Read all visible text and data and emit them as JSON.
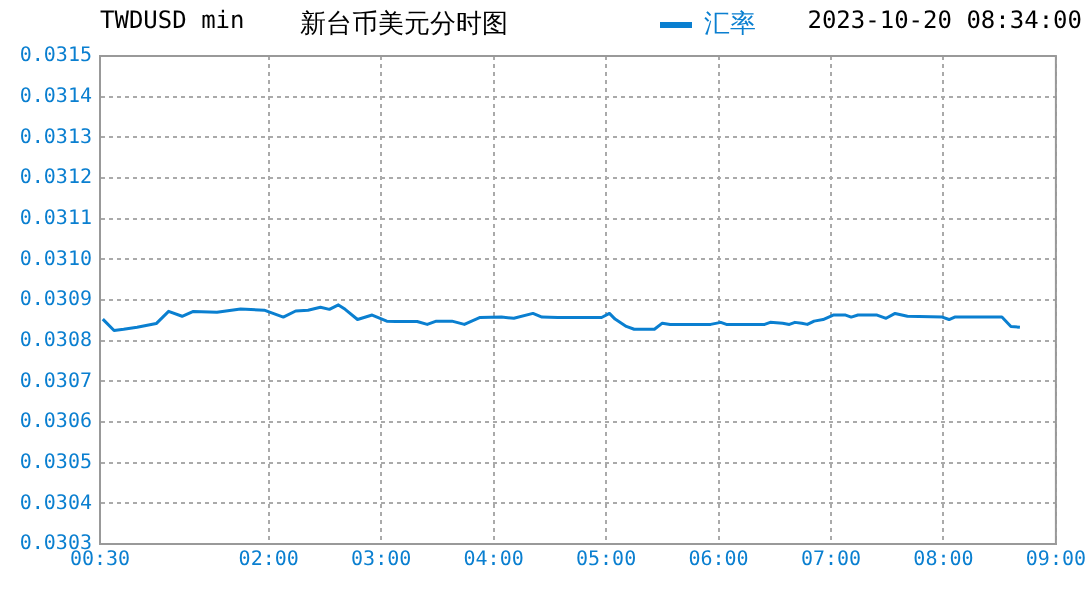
{
  "chart_data": {
    "type": "line",
    "title": "新台币美元分时图",
    "annotations": [
      "TWDUSD min",
      "2023-10-20 08:34:00"
    ],
    "x": [
      0.525,
      0.625,
      0.71,
      0.83,
      1.0,
      1.11,
      1.23,
      1.33,
      1.54,
      1.75,
      1.96,
      2.13,
      2.24,
      2.35,
      2.46,
      2.54,
      2.62,
      2.68,
      2.79,
      2.92,
      3.05,
      3.13,
      3.32,
      3.41,
      3.49,
      3.63,
      3.74,
      3.88,
      4.07,
      4.18,
      4.35,
      4.43,
      4.57,
      4.96,
      5.03,
      5.08,
      5.18,
      5.25,
      5.43,
      5.5,
      5.57,
      5.93,
      6.02,
      6.07,
      6.41,
      6.46,
      6.57,
      6.63,
      6.68,
      6.74,
      6.79,
      6.85,
      6.93,
      7.02,
      7.13,
      7.18,
      7.24,
      7.41,
      7.49,
      7.57,
      7.68,
      7.99,
      8.05,
      8.1,
      8.52,
      8.6,
      8.68
    ],
    "series": [
      {
        "name": "汇率",
        "color": "#0a7fd0",
        "values": [
          0.030853,
          0.030825,
          0.030828,
          0.030833,
          0.030842,
          0.030872,
          0.03086,
          0.030872,
          0.03087,
          0.030878,
          0.030875,
          0.030858,
          0.030873,
          0.030875,
          0.030882,
          0.030877,
          0.030888,
          0.030877,
          0.030852,
          0.030863,
          0.030848,
          0.030847,
          0.030847,
          0.03084,
          0.030848,
          0.030848,
          0.03084,
          0.030857,
          0.030858,
          0.030855,
          0.030867,
          0.030858,
          0.030857,
          0.030857,
          0.030867,
          0.030853,
          0.030835,
          0.030828,
          0.030828,
          0.030843,
          0.03084,
          0.03084,
          0.030845,
          0.03084,
          0.03084,
          0.030845,
          0.030843,
          0.03084,
          0.030845,
          0.030843,
          0.03084,
          0.030848,
          0.030852,
          0.030863,
          0.030863,
          0.030858,
          0.030863,
          0.030863,
          0.030855,
          0.030867,
          0.03086,
          0.030858,
          0.030852,
          0.030858,
          0.030858,
          0.030835,
          0.030833
        ]
      }
    ],
    "xlim": [
      0.5,
      9
    ],
    "xticks": [
      {
        "value": 0.5,
        "label": "00:30"
      },
      {
        "value": 2,
        "label": "02:00"
      },
      {
        "value": 3,
        "label": "03:00"
      },
      {
        "value": 4,
        "label": "04:00"
      },
      {
        "value": 5,
        "label": "05:00"
      },
      {
        "value": 6,
        "label": "06:00"
      },
      {
        "value": 7,
        "label": "07:00"
      },
      {
        "value": 8,
        "label": "08:00"
      },
      {
        "value": 9,
        "label": "09:00"
      }
    ],
    "ylim": [
      0.0303,
      0.0315
    ],
    "yticks": [
      0.0303,
      0.0304,
      0.0305,
      0.0306,
      0.0307,
      0.0308,
      0.0309,
      {
        "value": 0.031,
        "label": "0.0310"
      },
      0.0311,
      0.0312,
      0.0313,
      0.0314,
      0.0315
    ],
    "grid": true,
    "legend": "top",
    "marker": "none",
    "line_style": "solid"
  }
}
